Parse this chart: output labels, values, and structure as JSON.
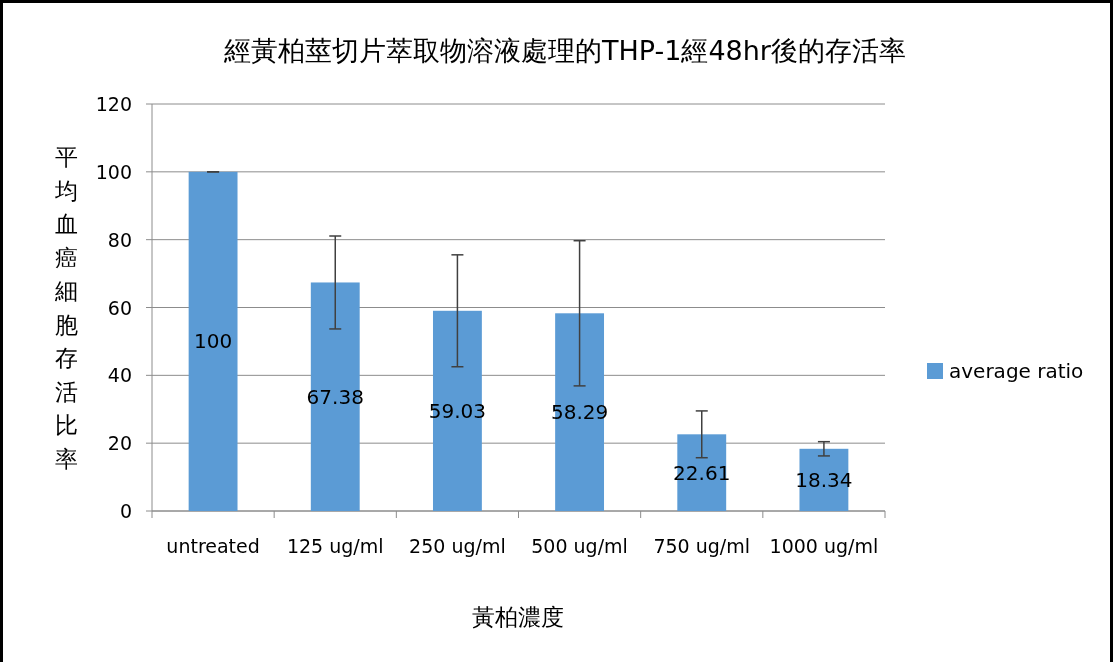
{
  "chart_data": {
    "type": "bar",
    "title": "經黃柏莖切片萃取物溶液處理的THP-1經48hr後的存活率",
    "xlabel": "黃柏濃度",
    "ylabel": "平均血癌細胞存活比率",
    "categories": [
      "untreated",
      "125 ug/ml",
      "250 ug/ml",
      "500 ug/ml",
      "750 ug/ml",
      "1000 ug/ml"
    ],
    "series": [
      {
        "name": "average ratio",
        "color": "#5b9bd5",
        "values": [
          100,
          67.38,
          59.03,
          58.29,
          22.61,
          18.34
        ],
        "errors": [
          0,
          13.7,
          16.5,
          21.4,
          6.9,
          2.1
        ]
      }
    ],
    "ylim": [
      0,
      120
    ],
    "yticks": [
      0,
      20,
      40,
      60,
      80,
      100,
      120
    ],
    "grid": "y",
    "legend": "right",
    "data_labels": true
  }
}
